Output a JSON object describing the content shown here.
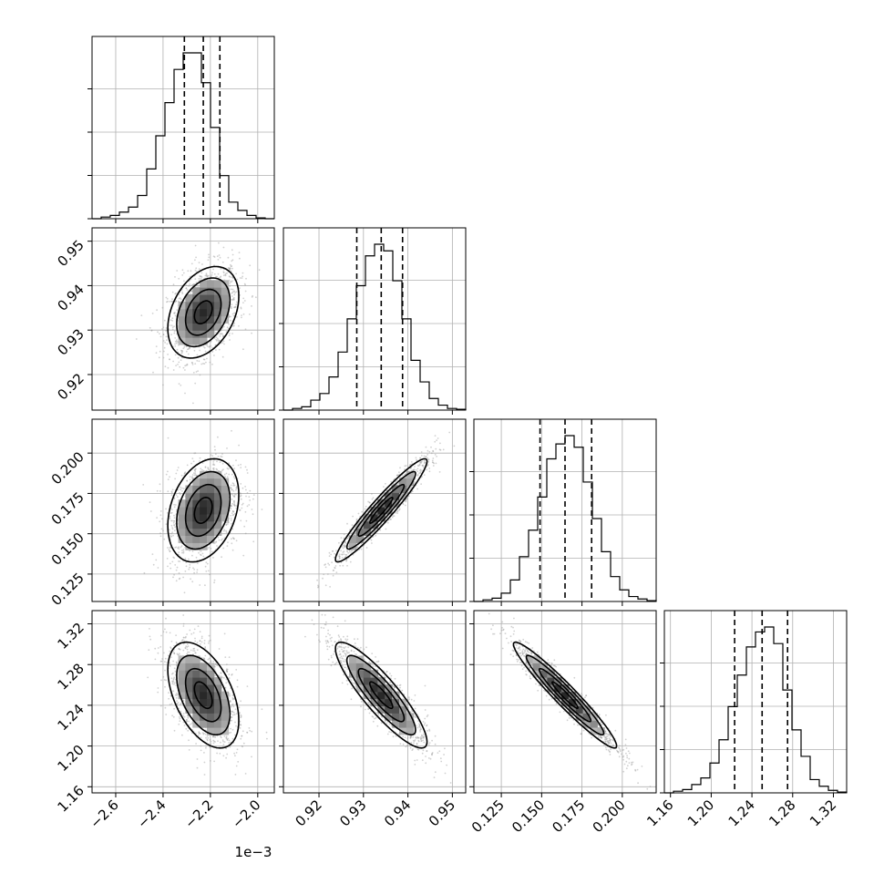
{
  "chart_data": {
    "type": "corner",
    "parameters": [
      {
        "ticks": [
          -2.6,
          -2.4,
          -2.2,
          -2.0
        ],
        "tick_labels": [
          "−2.6",
          "−2.4",
          "−2.2",
          "−2.0"
        ],
        "range": [
          -2.7,
          -1.93
        ],
        "offset_label": "1e−3"
      },
      {
        "ticks": [
          0.92,
          0.93,
          0.94,
          0.95
        ],
        "tick_labels": [
          "0.92",
          "0.93",
          "0.94",
          "0.95"
        ],
        "range": [
          0.912,
          0.953
        ],
        "offset_label": ""
      },
      {
        "ticks": [
          0.125,
          0.15,
          0.175,
          0.2
        ],
        "tick_labels": [
          "0.125",
          "0.150",
          "0.175",
          "0.200"
        ],
        "range": [
          0.108,
          0.221
        ],
        "offset_label": ""
      },
      {
        "ticks": [
          1.16,
          1.2,
          1.24,
          1.28,
          1.32
        ],
        "tick_labels": [
          "1.16",
          "1.20",
          "1.24",
          "1.28",
          "1.32"
        ],
        "range": [
          1.154,
          1.333
        ],
        "offset_label": ""
      }
    ],
    "marginals": [
      {
        "quantiles": [
          -2.31,
          -2.23,
          -2.16
        ],
        "bin_counts": [
          0.0,
          0.01,
          0.02,
          0.04,
          0.07,
          0.14,
          0.3,
          0.5,
          0.7,
          0.9,
          1.0,
          1.0,
          0.82,
          0.55,
          0.26,
          0.1,
          0.05,
          0.02,
          0.005,
          0.0
        ]
      },
      {
        "quantiles": [
          0.9285,
          0.934,
          0.9388
        ],
        "bin_counts": [
          0.0,
          0.01,
          0.02,
          0.06,
          0.1,
          0.2,
          0.35,
          0.55,
          0.75,
          0.93,
          1.0,
          0.96,
          0.78,
          0.55,
          0.3,
          0.17,
          0.07,
          0.03,
          0.01,
          0.005
        ]
      },
      {
        "quantiles": [
          0.149,
          0.1645,
          0.181
        ],
        "bin_counts": [
          0.0,
          0.01,
          0.02,
          0.05,
          0.13,
          0.27,
          0.43,
          0.63,
          0.86,
          0.95,
          1.0,
          0.93,
          0.72,
          0.5,
          0.3,
          0.15,
          0.07,
          0.03,
          0.015,
          0.005
        ]
      },
      {
        "quantiles": [
          1.223,
          1.25,
          1.275
        ],
        "bin_counts": [
          0.0,
          0.01,
          0.02,
          0.05,
          0.09,
          0.18,
          0.32,
          0.52,
          0.71,
          0.88,
          0.97,
          1.0,
          0.9,
          0.62,
          0.38,
          0.22,
          0.08,
          0.04,
          0.015,
          0.005
        ]
      }
    ],
    "correlations": {
      "1-0": 0.35,
      "2-0": 0.3,
      "2-1": 0.95,
      "3-0": -0.48,
      "3-1": -0.88,
      "3-2": -0.96
    },
    "quantile_style": "dashed",
    "grid": true
  }
}
